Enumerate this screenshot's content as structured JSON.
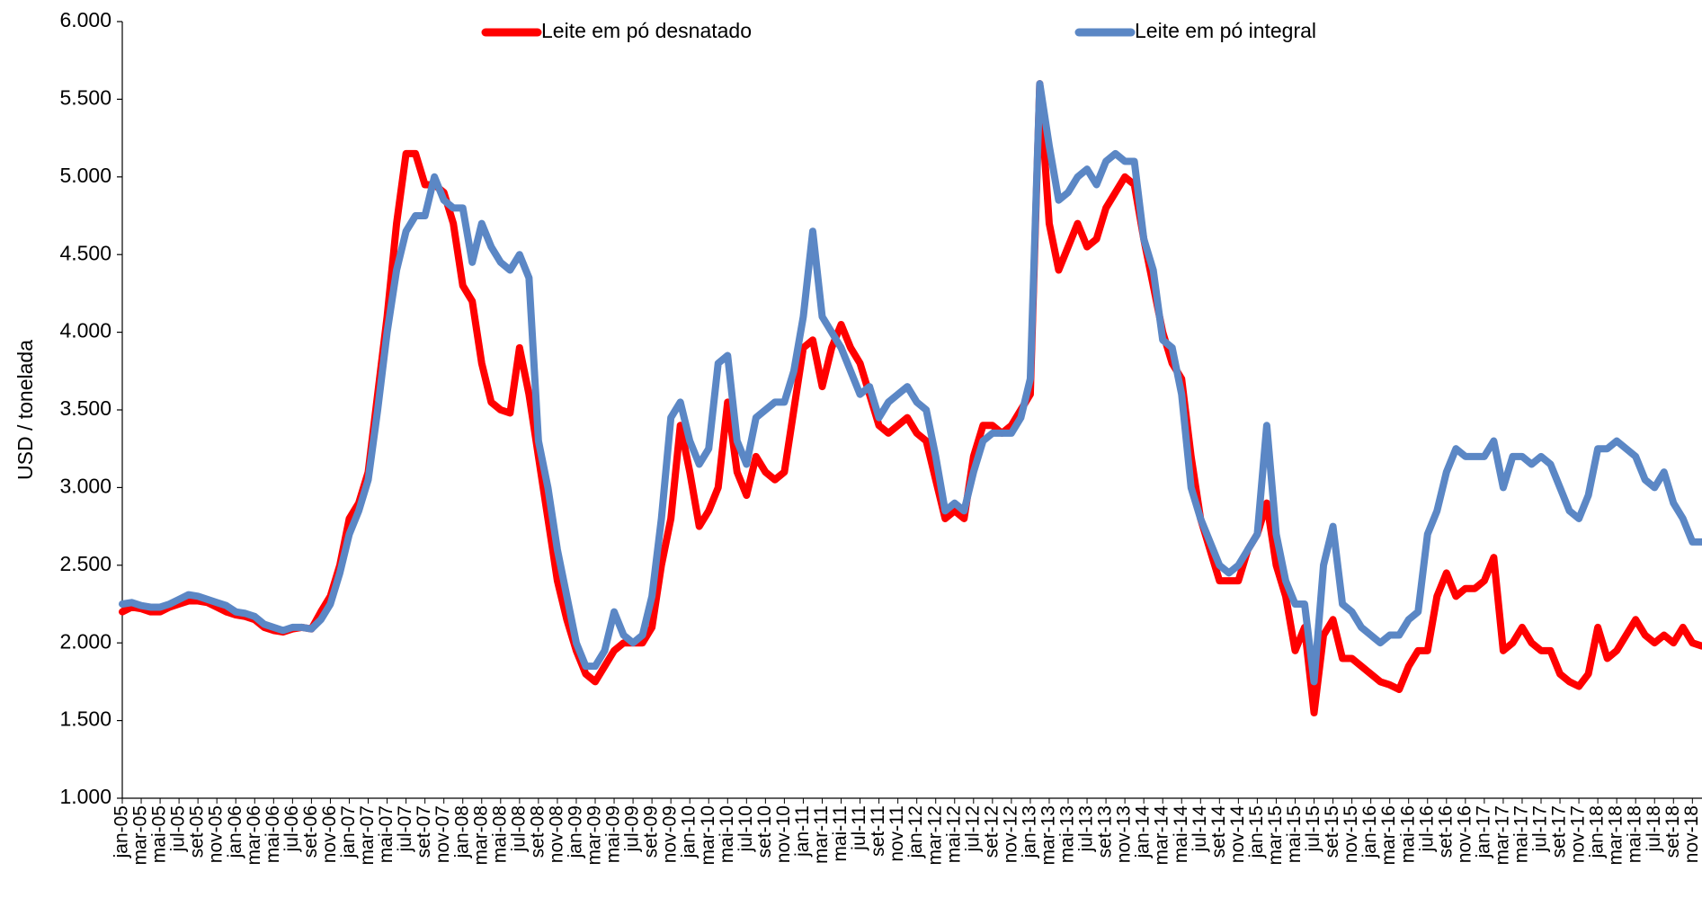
{
  "chart_data": {
    "type": "line",
    "y_label": "USD / tonelada",
    "legend": "top",
    "grid": false,
    "ylim": [
      1000,
      6000
    ],
    "yticks": [
      {
        "value": 1000,
        "label": "1.000"
      },
      {
        "value": 1500,
        "label": "1.500"
      },
      {
        "value": 2000,
        "label": "2.000"
      },
      {
        "value": 2500,
        "label": "2.500"
      },
      {
        "value": 3000,
        "label": "3.000"
      },
      {
        "value": 3500,
        "label": "3.500"
      },
      {
        "value": 4000,
        "label": "4.000"
      },
      {
        "value": 4500,
        "label": "4.500"
      },
      {
        "value": 5000,
        "label": "5.000"
      },
      {
        "value": 5500,
        "label": "5.500"
      },
      {
        "value": 6000,
        "label": "6.000"
      }
    ],
    "categories": [
      "jan-05",
      null,
      "mar-05",
      null,
      "mai-05",
      null,
      "jul-05",
      null,
      "set-05",
      null,
      "nov-05",
      null,
      "jan-06",
      null,
      "mar-06",
      null,
      "mai-06",
      null,
      "jul-06",
      null,
      "set-06",
      null,
      "nov-06",
      null,
      "jan-07",
      null,
      "mar-07",
      null,
      "mai-07",
      null,
      "jul-07",
      null,
      "set-07",
      null,
      "nov-07",
      null,
      "jan-08",
      null,
      "mar-08",
      null,
      "mai-08",
      null,
      "jul-08",
      null,
      "set-08",
      null,
      "nov-08",
      null,
      "jan-09",
      null,
      "mar-09",
      null,
      "mai-09",
      null,
      "jul-09",
      null,
      "set-09",
      null,
      "nov-09",
      null,
      "jan-10",
      null,
      "mar-10",
      null,
      "mai-10",
      null,
      "jul-10",
      null,
      "set-10",
      null,
      "nov-10",
      null,
      "jan-11",
      null,
      "mar-11",
      null,
      "mai-11",
      null,
      "jul-11",
      null,
      "set-11",
      null,
      "nov-11",
      null,
      "jan-12",
      null,
      "mar-12",
      null,
      "mai-12",
      null,
      "jul-12",
      null,
      "set-12",
      null,
      "nov-12",
      null,
      "jan-13",
      null,
      "mar-13",
      null,
      "mai-13",
      null,
      "jul-13",
      null,
      "set-13",
      null,
      "nov-13",
      null,
      "jan-14",
      null,
      "mar-14",
      null,
      "mai-14",
      null,
      "jul-14",
      null,
      "set-14",
      null,
      "nov-14",
      null,
      "jan-15",
      null,
      "mar-15",
      null,
      "mai-15",
      null,
      "jul-15",
      null,
      "set-15",
      null,
      "nov-15",
      null,
      "jan-16",
      null,
      "mar-16",
      null,
      "mai-16",
      null,
      "jul-16",
      null,
      "set-16",
      null,
      "nov-16",
      null,
      "jan-17",
      null,
      "mar-17",
      null,
      "mai-17",
      null,
      "jul-17",
      null,
      "set-17",
      null,
      "nov-17",
      null,
      "jan-18",
      null,
      "mar-18",
      null,
      "mai-18",
      null,
      "jul-18",
      null,
      "set-18",
      null,
      "nov-18",
      null
    ],
    "series": [
      {
        "name": "Leite em pó desnatado",
        "color": "#ff0000",
        "values": [
          2200,
          2230,
          2220,
          2200,
          2200,
          2230,
          2250,
          2270,
          2270,
          2260,
          2230,
          2200,
          2180,
          2170,
          2150,
          2100,
          2080,
          2070,
          2090,
          2100,
          2090,
          2200,
          2300,
          2500,
          2800,
          2900,
          3100,
          3600,
          4100,
          4700,
          5150,
          5150,
          4950,
          4950,
          4900,
          4700,
          4300,
          4200,
          3800,
          3550,
          3500,
          3480,
          3900,
          3600,
          3200,
          2800,
          2400,
          2150,
          1950,
          1800,
          1750,
          1850,
          1950,
          2000,
          2000,
          2000,
          2100,
          2500,
          2800,
          3400,
          3100,
          2750,
          2850,
          3000,
          3550,
          3100,
          2950,
          3200,
          3100,
          3050,
          3100,
          3500,
          3900,
          3950,
          3650,
          3900,
          4050,
          3900,
          3800,
          3600,
          3400,
          3350,
          3400,
          3450,
          3350,
          3300,
          3050,
          2800,
          2850,
          2800,
          3200,
          3400,
          3400,
          3350,
          3400,
          3500,
          3600,
          5600,
          4700,
          4400,
          4550,
          4700,
          4550,
          4600,
          4800,
          4900,
          5000,
          4950,
          4600,
          4300,
          4000,
          3800,
          3700,
          3200,
          2800,
          2600,
          2400,
          2400,
          2400,
          2600,
          2700,
          2900,
          2500,
          2300,
          1950,
          2100,
          1550,
          2050,
          2150,
          1900,
          1900,
          1850,
          1800,
          1750,
          1730,
          1700,
          1850,
          1950,
          1950,
          2300,
          2450,
          2300,
          2350,
          2350,
          2400,
          2550,
          1950,
          2000,
          2100,
          2000,
          1950,
          1950,
          1800,
          1750,
          1720,
          1800,
          2100,
          1900,
          1950,
          2050,
          2150,
          2050,
          2000,
          2050,
          2000,
          2100,
          2000,
          1980
        ]
      },
      {
        "name": "Leite em pó integral",
        "color": "#5b87c5",
        "values": [
          2250,
          2260,
          2240,
          2230,
          2230,
          2250,
          2280,
          2310,
          2300,
          2280,
          2260,
          2240,
          2200,
          2190,
          2170,
          2120,
          2100,
          2080,
          2100,
          2100,
          2090,
          2150,
          2250,
          2450,
          2700,
          2850,
          3050,
          3500,
          4000,
          4400,
          4650,
          4750,
          4750,
          5000,
          4850,
          4800,
          4800,
          4450,
          4700,
          4550,
          4450,
          4400,
          4500,
          4350,
          3300,
          3000,
          2600,
          2300,
          2000,
          1850,
          1850,
          1950,
          2200,
          2050,
          2000,
          2050,
          2300,
          2800,
          3450,
          3550,
          3300,
          3150,
          3250,
          3800,
          3850,
          3300,
          3150,
          3450,
          3500,
          3550,
          3550,
          3750,
          4100,
          4650,
          4100,
          4000,
          3900,
          3750,
          3600,
          3650,
          3450,
          3550,
          3600,
          3650,
          3550,
          3500,
          3200,
          2850,
          2900,
          2850,
          3100,
          3300,
          3350,
          3350,
          3350,
          3450,
          3700,
          5600,
          5200,
          4850,
          4900,
          5000,
          5050,
          4950,
          5100,
          5150,
          5100,
          5100,
          4600,
          4400,
          3950,
          3900,
          3600,
          3000,
          2800,
          2650,
          2500,
          2450,
          2500,
          2600,
          2700,
          3400,
          2700,
          2400,
          2250,
          2250,
          1750,
          2500,
          2750,
          2250,
          2200,
          2100,
          2050,
          2000,
          2050,
          2050,
          2150,
          2200,
          2700,
          2850,
          3100,
          3250,
          3200,
          3200,
          3200,
          3300,
          3000,
          3200,
          3200,
          3150,
          3200,
          3150,
          3000,
          2850,
          2800,
          2950,
          3250,
          3250,
          3300,
          3250,
          3200,
          3050,
          3000,
          3100,
          2900,
          2800,
          2650,
          2650
        ]
      }
    ]
  }
}
